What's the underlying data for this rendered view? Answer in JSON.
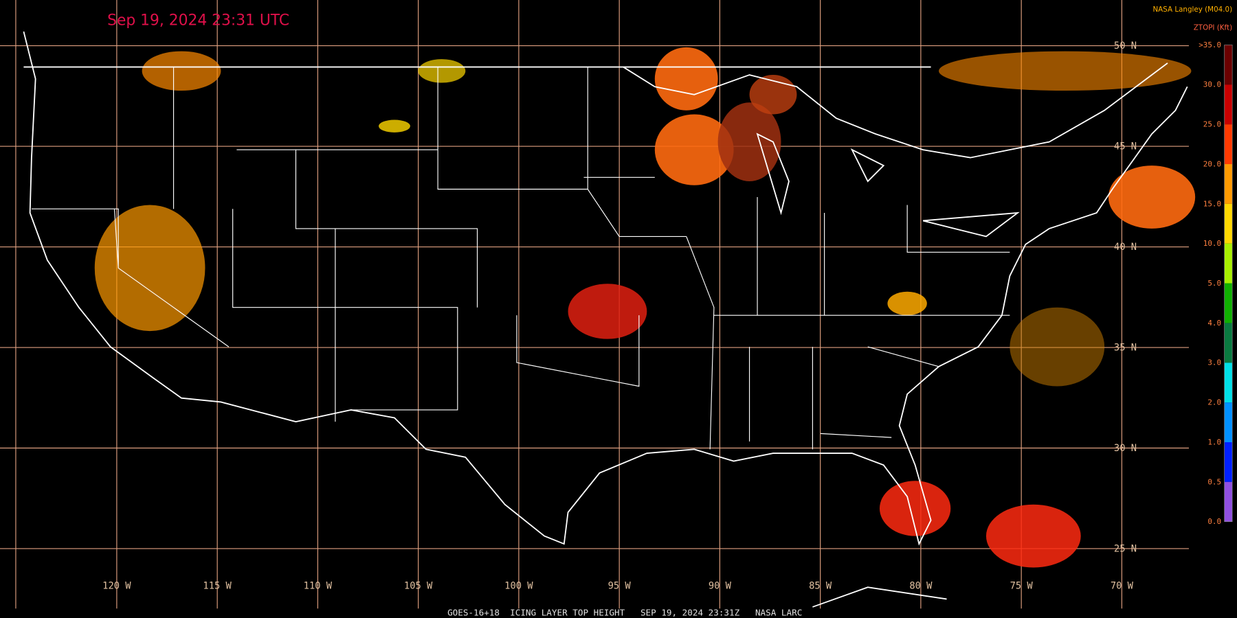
{
  "map": {
    "timestamp": "Sep 19, 2024 23:31 UTC",
    "producer": "NASA Langley (M04.0)",
    "product_units": "ZTOPI (Kft)",
    "footer": "GOES-16+18  ICING LAYER TOP HEIGHT   SEP 19, 2024 23:31Z   NASA LARC",
    "latitude_labels": [
      "50 N",
      "45 N",
      "40 N",
      "35 N",
      "30 N",
      "25 N"
    ],
    "longitude_labels": [
      "120 W",
      "115 W",
      "110 W",
      "105 W",
      "100 W",
      "95 W",
      "90 W",
      "85 W",
      "80 W",
      "75 W",
      "70 W"
    ],
    "colorbar": {
      "labels": [
        ">35.0",
        "30.0",
        "25.0",
        "20.0",
        "15.0",
        "10.0",
        "5.0",
        "4.0",
        "3.0",
        "2.0",
        "1.0",
        "0.5",
        "0.0"
      ],
      "colors": [
        "#6a0000",
        "#c80000",
        "#ff3a00",
        "#ff9a00",
        "#ffd800",
        "#a8f000",
        "#10b000",
        "#0a7a40",
        "#00e0e8",
        "#0090ff",
        "#0020ff",
        "#9050e0"
      ]
    }
  }
}
